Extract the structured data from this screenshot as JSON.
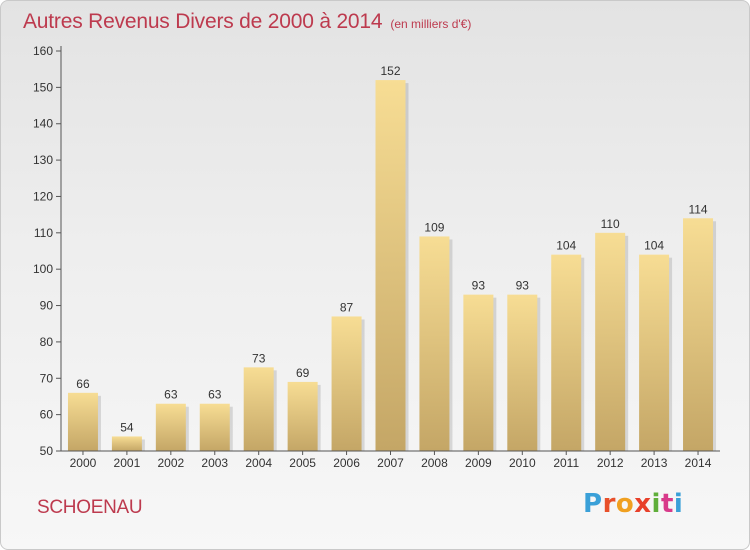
{
  "header": {
    "title": "Autres Revenus Divers de 2000 à 2014",
    "unit_note": "(en milliers d'€)"
  },
  "footer": {
    "commune": "SCHOENAU",
    "brand_letters": [
      "P",
      "r",
      "o",
      "x",
      "i",
      "t",
      "i"
    ],
    "brand_colors": [
      "#3aa0d8",
      "#e8502a",
      "#f0a020",
      "#e8402a",
      "#5fae3a",
      "#d83a8a",
      "#3aa0d8"
    ]
  },
  "colors": {
    "title": "#bd3a4e",
    "bar_top": "#f7dd94",
    "bar_bottom": "#c4a666",
    "axis": "#555555"
  },
  "chart_data": {
    "type": "bar",
    "title": "Autres Revenus Divers de 2000 à 2014",
    "xlabel": "",
    "ylabel": "",
    "categories": [
      "2000",
      "2001",
      "2002",
      "2003",
      "2004",
      "2005",
      "2006",
      "2007",
      "2008",
      "2009",
      "2010",
      "2011",
      "2012",
      "2013",
      "2014"
    ],
    "values": [
      66,
      54,
      63,
      63,
      73,
      69,
      87,
      152,
      109,
      93,
      93,
      104,
      110,
      104,
      114
    ],
    "ylim": [
      50,
      160
    ],
    "yticks": [
      50,
      60,
      70,
      80,
      90,
      100,
      110,
      120,
      130,
      140,
      150,
      160
    ],
    "grid": false,
    "data_labels": true
  }
}
